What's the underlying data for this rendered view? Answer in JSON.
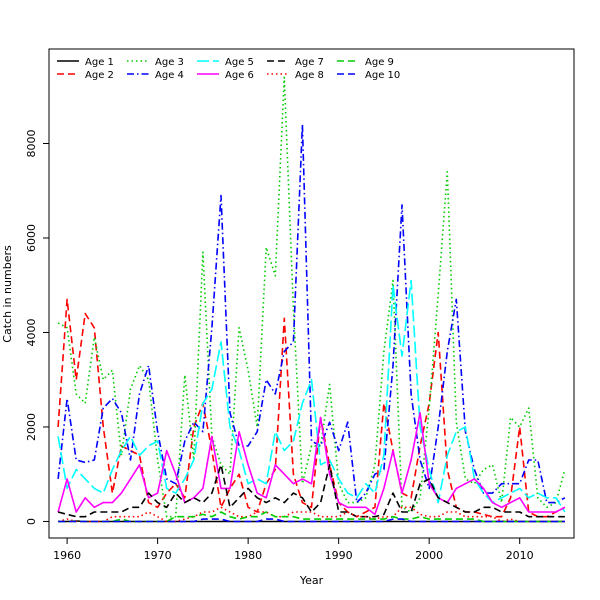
{
  "chart_data": {
    "type": "line",
    "title": "",
    "xlabel": "Year",
    "ylabel": "Catch in numbers",
    "xlim": [
      1958,
      2016
    ],
    "ylim": [
      -350,
      10000
    ],
    "x_ticks": [
      1960,
      1970,
      1980,
      1990,
      2000,
      2010
    ],
    "y_ticks": [
      0,
      2000,
      4000,
      6000,
      8000
    ],
    "legend_position": "top-left",
    "x": [
      1959,
      1960,
      1961,
      1962,
      1963,
      1964,
      1965,
      1966,
      1967,
      1968,
      1969,
      1970,
      1971,
      1972,
      1973,
      1974,
      1975,
      1976,
      1977,
      1978,
      1979,
      1980,
      1981,
      1982,
      1983,
      1984,
      1985,
      1986,
      1987,
      1988,
      1989,
      1990,
      1991,
      1992,
      1993,
      1994,
      1995,
      1996,
      1997,
      1998,
      1999,
      2000,
      2001,
      2002,
      2003,
      2004,
      2005,
      2006,
      2007,
      2008,
      2009,
      2010,
      2011,
      2012,
      2013,
      2014,
      2015
    ],
    "series": [
      {
        "name": "Age 1",
        "color": "#000000",
        "dash": "solid",
        "values": [
          0,
          0,
          10,
          0,
          0,
          0,
          0,
          0,
          0,
          0,
          0,
          0,
          0,
          0,
          0,
          0,
          0,
          0,
          0,
          0,
          0,
          0,
          0,
          0,
          0,
          0,
          0,
          0,
          0,
          0,
          0,
          0,
          0,
          0,
          0,
          0,
          0,
          0,
          0,
          0,
          0,
          0,
          0,
          0,
          0,
          0,
          0,
          0,
          0,
          0,
          0,
          0,
          0,
          0,
          0,
          0,
          0
        ]
      },
      {
        "name": "Age 2",
        "color": "#ff0000",
        "dash": "dashed",
        "values": [
          2000,
          4700,
          3000,
          4400,
          4100,
          2000,
          600,
          1600,
          1500,
          1400,
          400,
          300,
          600,
          800,
          500,
          2000,
          2500,
          1500,
          300,
          700,
          1000,
          300,
          200,
          800,
          1100,
          4300,
          1000,
          400,
          300,
          2200,
          1200,
          400,
          200,
          100,
          200,
          300,
          2500,
          1500,
          600,
          500,
          1600,
          2500,
          4000,
          1100,
          300,
          200,
          200,
          150,
          100,
          100,
          500,
          2000,
          200,
          100,
          100,
          200,
          300
        ]
      },
      {
        "name": "Age 3",
        "color": "#00cd00",
        "dash": "dotted",
        "values": [
          4200,
          4100,
          2700,
          2500,
          3900,
          3000,
          3200,
          1400,
          2800,
          3300,
          3000,
          1300,
          100,
          100,
          3100,
          1300,
          5700,
          1800,
          1200,
          1000,
          4100,
          3200,
          2000,
          5800,
          5200,
          9400,
          4500,
          800,
          1600,
          1600,
          2900,
          800,
          400,
          400,
          500,
          1200,
          3600,
          5100,
          300,
          200,
          500,
          2400,
          4800,
          7400,
          2100,
          900,
          800,
          1100,
          1200,
          400,
          2200,
          2000,
          2400,
          500,
          300,
          400,
          1100
        ]
      },
      {
        "name": "Age 4",
        "color": "#0000ff",
        "dash": "dashdot",
        "values": [
          900,
          2600,
          1300,
          1250,
          1300,
          2400,
          2600,
          2300,
          1300,
          2700,
          3300,
          1900,
          900,
          800,
          1700,
          2100,
          1900,
          4100,
          6900,
          2300,
          1600,
          1600,
          1900,
          3000,
          2700,
          3600,
          3800,
          8400,
          1700,
          1600,
          2100,
          1500,
          2100,
          400,
          600,
          1000,
          1100,
          3300,
          6700,
          2700,
          1300,
          700,
          2000,
          3600,
          4700,
          1900,
          1100,
          600,
          600,
          800,
          800,
          800,
          1300,
          1300,
          400,
          400,
          500
        ]
      },
      {
        "name": "Age 5",
        "color": "#00ffff",
        "dash": "longdash",
        "values": [
          1800,
          700,
          1100,
          900,
          700,
          600,
          1100,
          1500,
          1800,
          1400,
          1600,
          1700,
          700,
          600,
          900,
          1300,
          2500,
          2800,
          3800,
          2000,
          1500,
          800,
          900,
          800,
          1900,
          1500,
          1700,
          2500,
          3000,
          1200,
          1300,
          900,
          600,
          500,
          800,
          600,
          1400,
          5000,
          3500,
          5100,
          2000,
          1100,
          400,
          1400,
          1900,
          2000,
          900,
          600,
          400,
          500,
          600,
          700,
          500,
          600,
          500,
          500,
          200
        ]
      },
      {
        "name": "Age 6",
        "color": "#ff00ff",
        "dash": "solid",
        "values": [
          200,
          900,
          200,
          500,
          300,
          400,
          400,
          600,
          900,
          1200,
          500,
          600,
          1500,
          1000,
          400,
          500,
          700,
          1800,
          700,
          700,
          1900,
          1200,
          600,
          500,
          1200,
          1000,
          800,
          900,
          800,
          2200,
          1000,
          400,
          300,
          300,
          300,
          150,
          700,
          1500,
          600,
          1300,
          2300,
          800,
          500,
          400,
          700,
          800,
          900,
          700,
          400,
          300,
          400,
          500,
          200,
          200,
          200,
          200,
          300
        ]
      },
      {
        "name": "Age 7",
        "color": "#000000",
        "dash": "dashed",
        "values": [
          200,
          150,
          100,
          100,
          200,
          200,
          200,
          200,
          300,
          300,
          600,
          400,
          300,
          600,
          400,
          500,
          400,
          600,
          1200,
          300,
          500,
          700,
          500,
          400,
          500,
          400,
          600,
          500,
          200,
          400,
          1200,
          200,
          200,
          100,
          100,
          100,
          150,
          600,
          200,
          200,
          800,
          900,
          500,
          400,
          300,
          200,
          200,
          300,
          300,
          200,
          200,
          200,
          100,
          100,
          100,
          100,
          100
        ]
      },
      {
        "name": "Age 8",
        "color": "#ff0000",
        "dash": "dotted",
        "values": [
          0,
          50,
          0,
          0,
          0,
          0,
          100,
          100,
          100,
          100,
          200,
          100,
          0,
          0,
          50,
          100,
          200,
          200,
          300,
          200,
          100,
          100,
          200,
          200,
          100,
          100,
          200,
          200,
          200,
          100,
          100,
          100,
          200,
          100,
          100,
          50,
          100,
          100,
          300,
          300,
          150,
          100,
          100,
          200,
          200,
          100,
          100,
          100,
          100,
          0,
          50,
          0,
          0,
          0,
          0,
          0,
          0
        ]
      },
      {
        "name": "Age 9",
        "color": "#00cd00",
        "dash": "dashed",
        "values": [
          0,
          0,
          0,
          0,
          0,
          0,
          0,
          50,
          0,
          0,
          0,
          0,
          0,
          100,
          100,
          100,
          150,
          100,
          200,
          100,
          50,
          100,
          100,
          200,
          100,
          100,
          100,
          50,
          50,
          50,
          50,
          50,
          50,
          50,
          50,
          50,
          50,
          100,
          50,
          50,
          100,
          50,
          50,
          50,
          50,
          50,
          50,
          0,
          0,
          0,
          0,
          0,
          0,
          0,
          0,
          0,
          0
        ]
      },
      {
        "name": "Age 10",
        "color": "#0000ff",
        "dash": "dashed",
        "values": [
          0,
          0,
          0,
          0,
          0,
          0,
          0,
          0,
          0,
          0,
          0,
          0,
          0,
          0,
          0,
          0,
          50,
          50,
          50,
          0,
          0,
          0,
          0,
          50,
          50,
          0,
          0,
          0,
          0,
          0,
          0,
          0,
          0,
          0,
          0,
          0,
          0,
          50,
          50,
          0,
          0,
          0,
          0,
          0,
          0,
          0,
          0,
          0,
          0,
          0,
          0,
          0,
          0,
          0,
          0,
          0,
          0
        ]
      }
    ]
  }
}
